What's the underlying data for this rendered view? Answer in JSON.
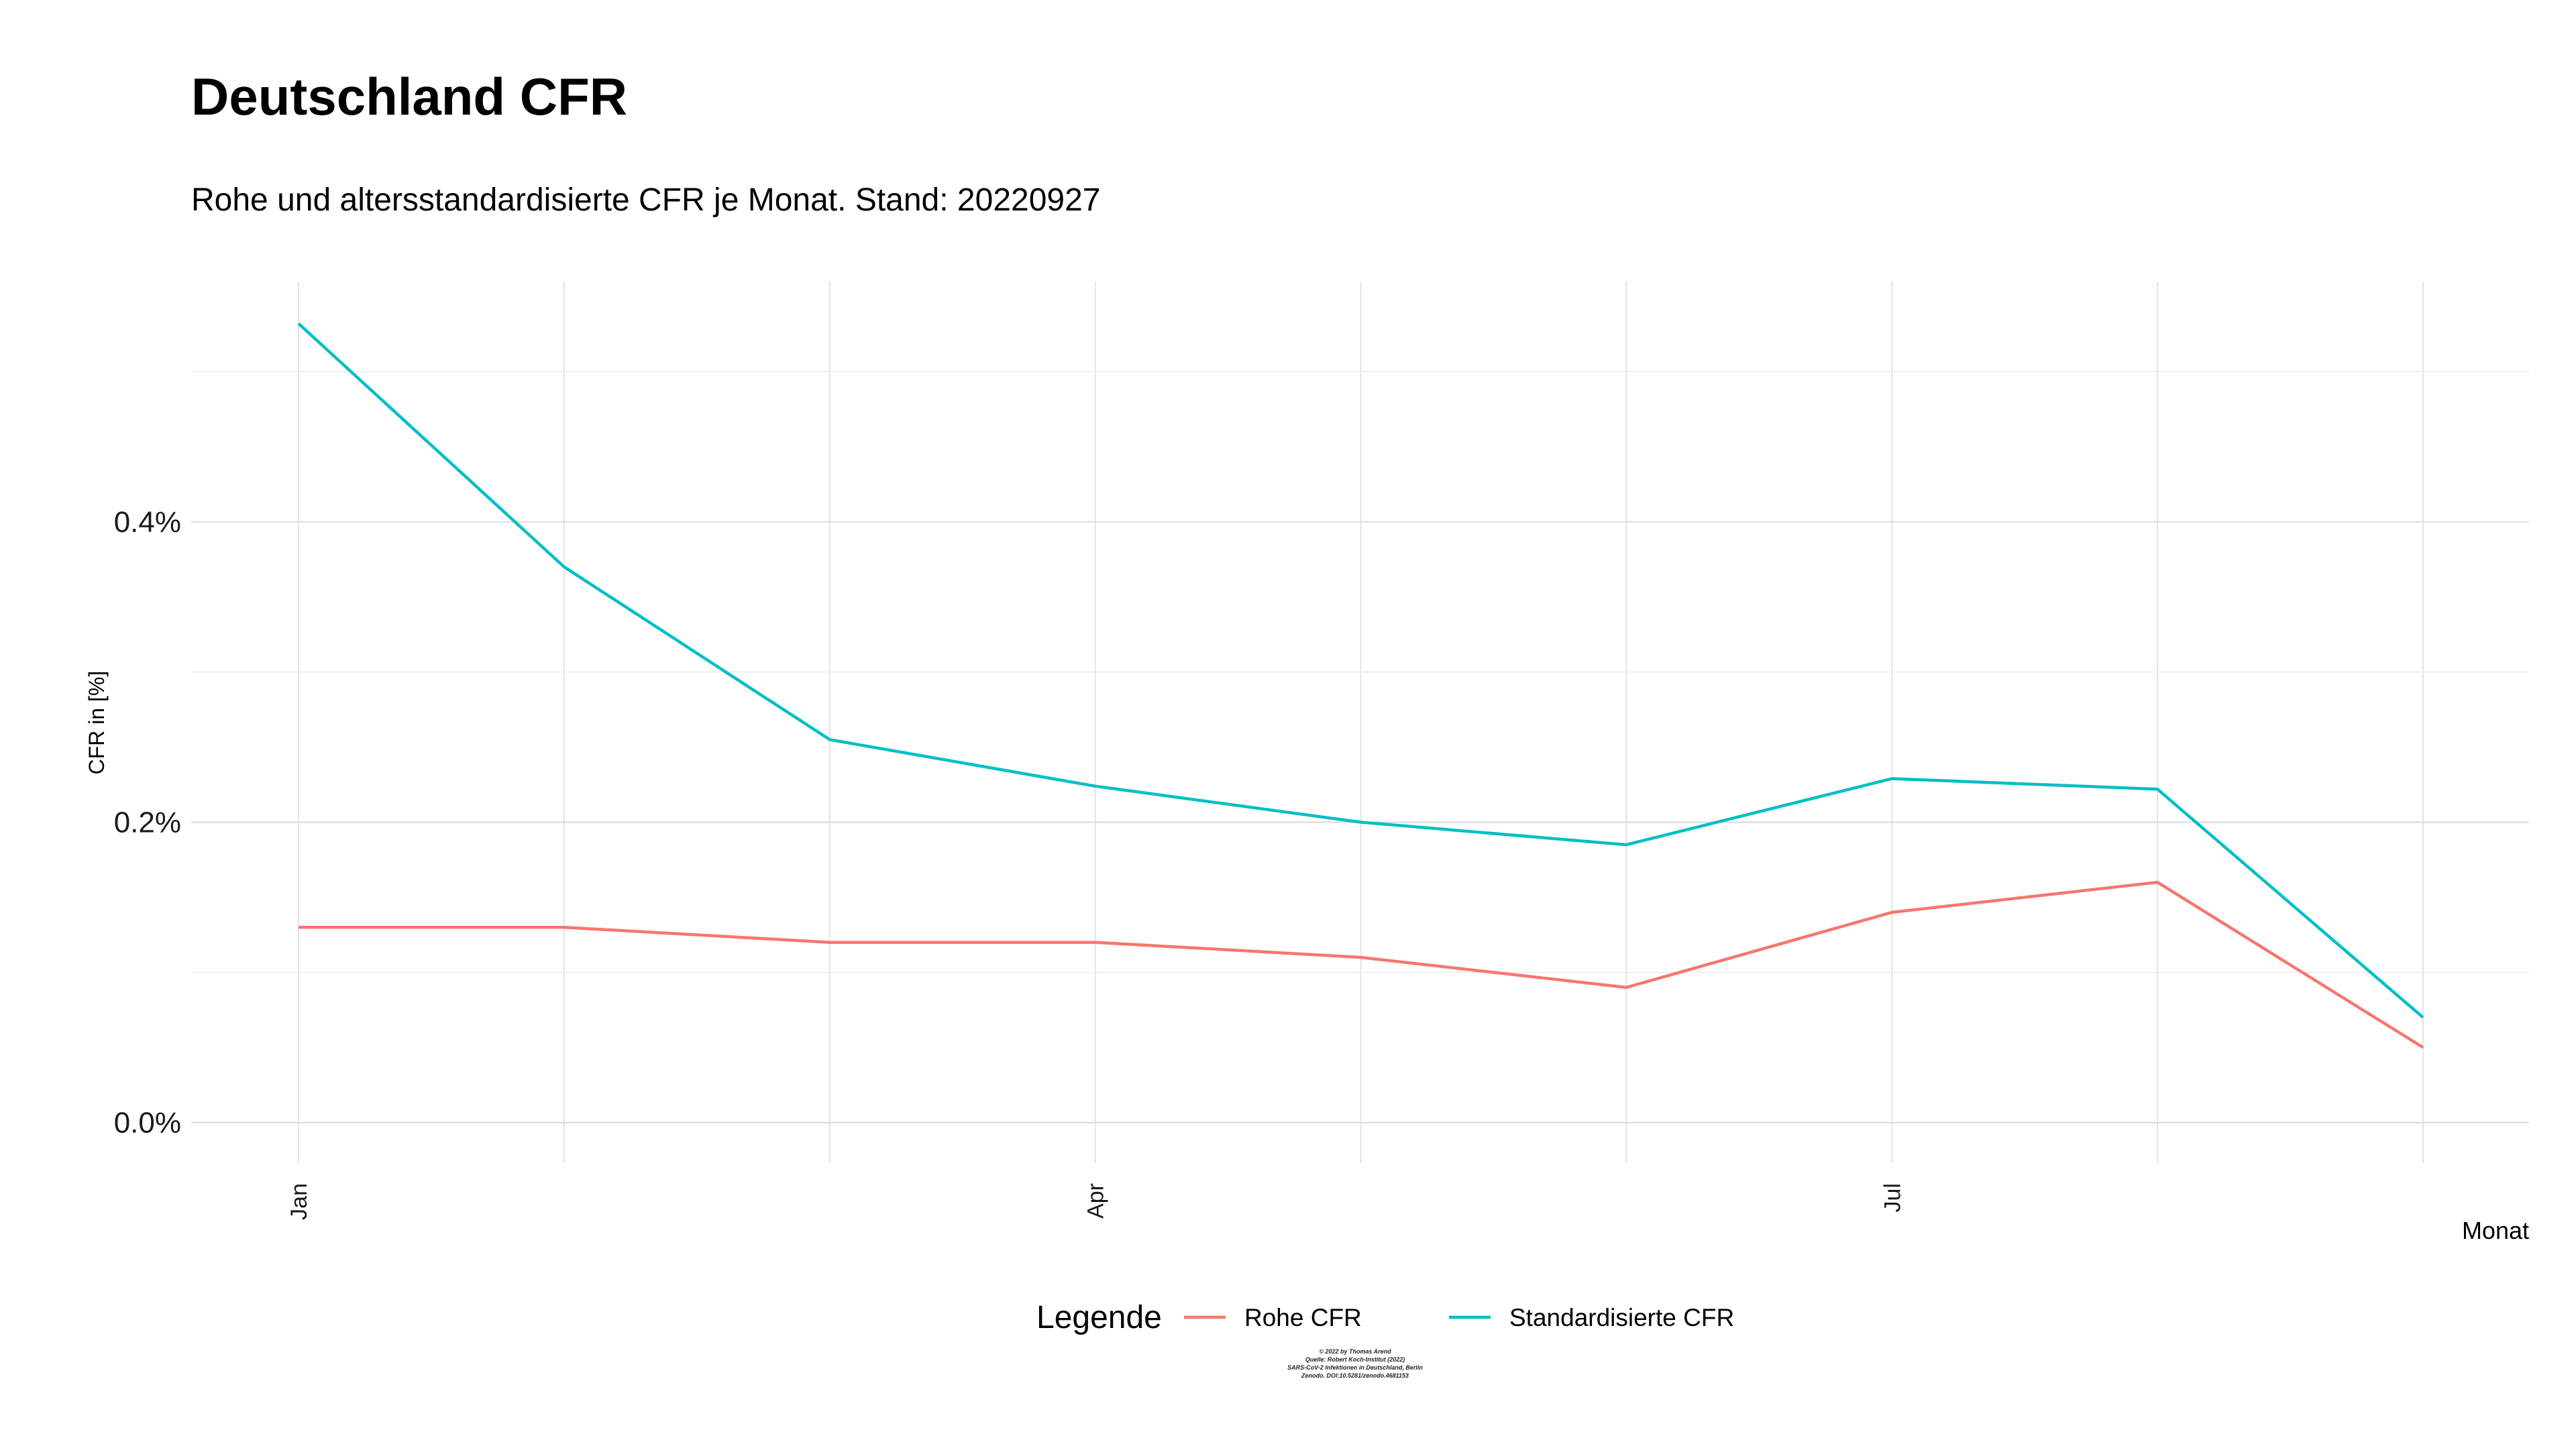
{
  "chart_data": {
    "type": "line",
    "title": "Deutschland CFR",
    "subtitle": "Rohe und altersstandardisierte CFR je Monat. Stand: 20220927",
    "xlabel": "Monat",
    "ylabel": "CFR in [%]",
    "x": [
      "2022-01",
      "2022-02",
      "2022-03",
      "2022-04",
      "2022-05",
      "2022-06",
      "2022-07",
      "2022-08",
      "2022-09"
    ],
    "x_ticks": [
      "Jan",
      "Apr",
      "Jul"
    ],
    "y_ticks": [
      "0.0%",
      "0.2%",
      "0.4%"
    ],
    "y_tick_values": [
      0.0,
      0.2,
      0.4
    ],
    "ylim": [
      -0.027,
      0.56
    ],
    "grid": true,
    "legend_title": "Legende",
    "legend_position": "bottom",
    "series": [
      {
        "name": "Rohe CFR",
        "color": "#F8766D",
        "values": [
          0.13,
          0.13,
          0.12,
          0.12,
          0.11,
          0.09,
          0.14,
          0.16,
          0.05
        ]
      },
      {
        "name": "Standardisierte CFR",
        "color": "#00BFC4",
        "values": [
          0.532,
          0.37,
          0.255,
          0.224,
          0.2,
          0.185,
          0.229,
          0.222,
          0.07
        ]
      }
    ]
  },
  "credit": [
    "© 2022 by Thomas Arend",
    "Quelle: Robert Koch-Institut (2022)",
    "SARS-CoV-2 Infektionen in Deutschland, Berlin",
    "Zenodo. DOI:10.5281/zenodo.4681153"
  ]
}
